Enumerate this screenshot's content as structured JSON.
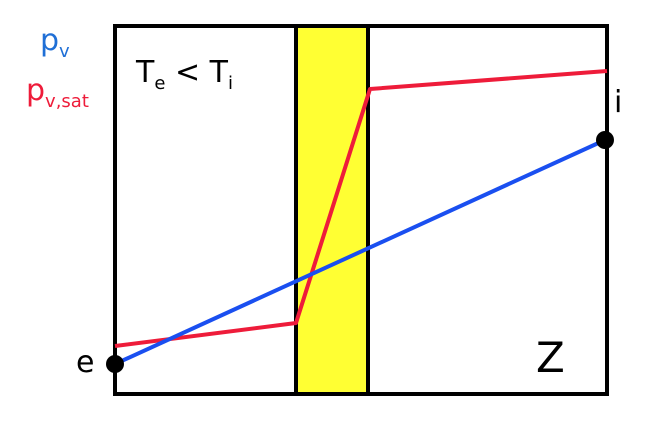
{
  "legend": {
    "pv_symbol": "p",
    "pv_sub": "v",
    "pv_color": "#1f6fd6",
    "pvsat_symbol": "p",
    "pvsat_sub": "v,sat",
    "pvsat_color": "#ee1c3a"
  },
  "condition": {
    "t1": "T",
    "t1_sub": "e",
    "relation": " < ",
    "t2": "T",
    "t2_sub": "i"
  },
  "points": {
    "exterior": "e",
    "interior": "i"
  },
  "axis_label": "Z",
  "colors": {
    "layer_fill": "#ffff33",
    "pv_line": "#1a4ff0",
    "pvsat_line": "#ee1c3a",
    "border": "#000000"
  }
}
